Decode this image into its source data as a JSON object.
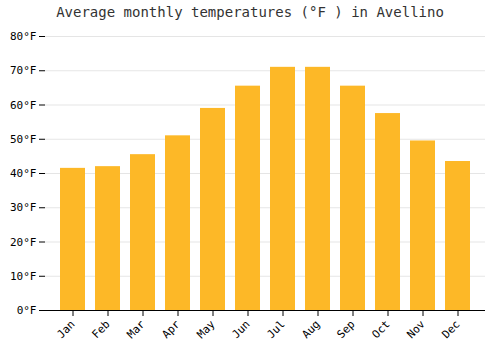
{
  "chart_data": {
    "type": "bar",
    "title": "Average monthly temperatures (°F ) in Avellino",
    "categories": [
      "Jan",
      "Feb",
      "Mar",
      "Apr",
      "May",
      "Jun",
      "Jul",
      "Aug",
      "Sep",
      "Oct",
      "Nov",
      "Dec"
    ],
    "values": [
      41.5,
      42.0,
      45.5,
      51.0,
      59.0,
      65.5,
      71.0,
      71.0,
      65.5,
      57.5,
      49.5,
      43.5
    ],
    "color": "#FDB827",
    "ylim": [
      0,
      80
    ],
    "yticks": [
      {
        "value": 0,
        "label": "0°F"
      },
      {
        "value": 10,
        "label": "10°F"
      },
      {
        "value": 20,
        "label": "20°F"
      },
      {
        "value": 30,
        "label": "30°F"
      },
      {
        "value": 40,
        "label": "40°F"
      },
      {
        "value": 50,
        "label": "50°F"
      },
      {
        "value": 60,
        "label": "60°F"
      },
      {
        "value": 70,
        "label": "70°F"
      },
      {
        "value": 80,
        "label": "80°F"
      }
    ],
    "grid": true
  }
}
